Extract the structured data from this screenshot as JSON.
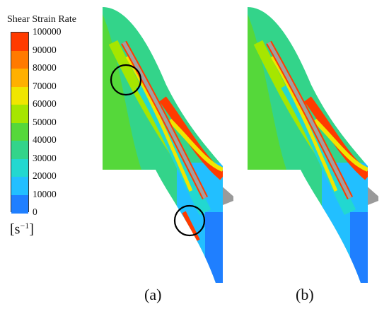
{
  "legend": {
    "title": "Shear Strain Rate",
    "ticks": [
      "100000",
      "90000",
      "80000",
      "70000",
      "60000",
      "50000",
      "40000",
      "30000",
      "20000",
      "10000",
      "0"
    ],
    "units_base": "[s",
    "units_exp": "−1",
    "units_close": "]",
    "colors": [
      "#ff3b00",
      "#ff7a00",
      "#ffb000",
      "#f0e600",
      "#a6e600",
      "#55d83a",
      "#33d48a",
      "#22d8d0",
      "#22bfff",
      "#1f7fff",
      "#1f3cff"
    ]
  },
  "panels": [
    {
      "caption": "(a)"
    },
    {
      "caption": "(b)"
    }
  ]
}
